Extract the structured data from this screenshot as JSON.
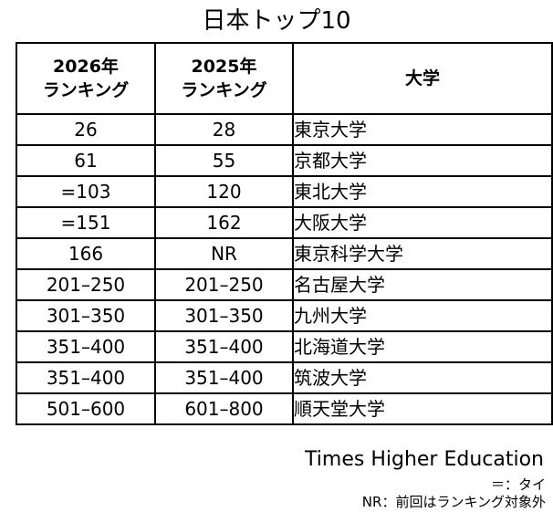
{
  "title": "日本トップ10",
  "headers": {
    "col1_line1": "2026年",
    "col1_line2": "ランキング",
    "col2_line1": "2025年",
    "col2_line2": "ランキング",
    "col3": "大学"
  },
  "rows": [
    {
      "rank_2026": "26",
      "rank_2025": "28",
      "university": "東京大学"
    },
    {
      "rank_2026": "61",
      "rank_2025": "55",
      "university": "京都大学"
    },
    {
      "rank_2026": "=103",
      "rank_2025": "120",
      "university": "東北大学"
    },
    {
      "rank_2026": "=151",
      "rank_2025": "162",
      "university": "大阪大学"
    },
    {
      "rank_2026": "166",
      "rank_2025": "NR",
      "university": "東京科学大学"
    },
    {
      "rank_2026": "201–250",
      "rank_2025": "201–250",
      "university": "名古屋大学"
    },
    {
      "rank_2026": "301–350",
      "rank_2025": "301–350",
      "university": "九州大学"
    },
    {
      "rank_2026": "351–400",
      "rank_2025": "351–400",
      "university": "北海道大学"
    },
    {
      "rank_2026": "351–400",
      "rank_2025": "351–400",
      "university": "筑波大学"
    },
    {
      "rank_2026": "501–600",
      "rank_2025": "601–800",
      "university": "順天堂大学"
    }
  ],
  "source": "Times Higher Education",
  "notes": [
    "＝：タイ",
    "NR：前回はランキング対象外"
  ]
}
